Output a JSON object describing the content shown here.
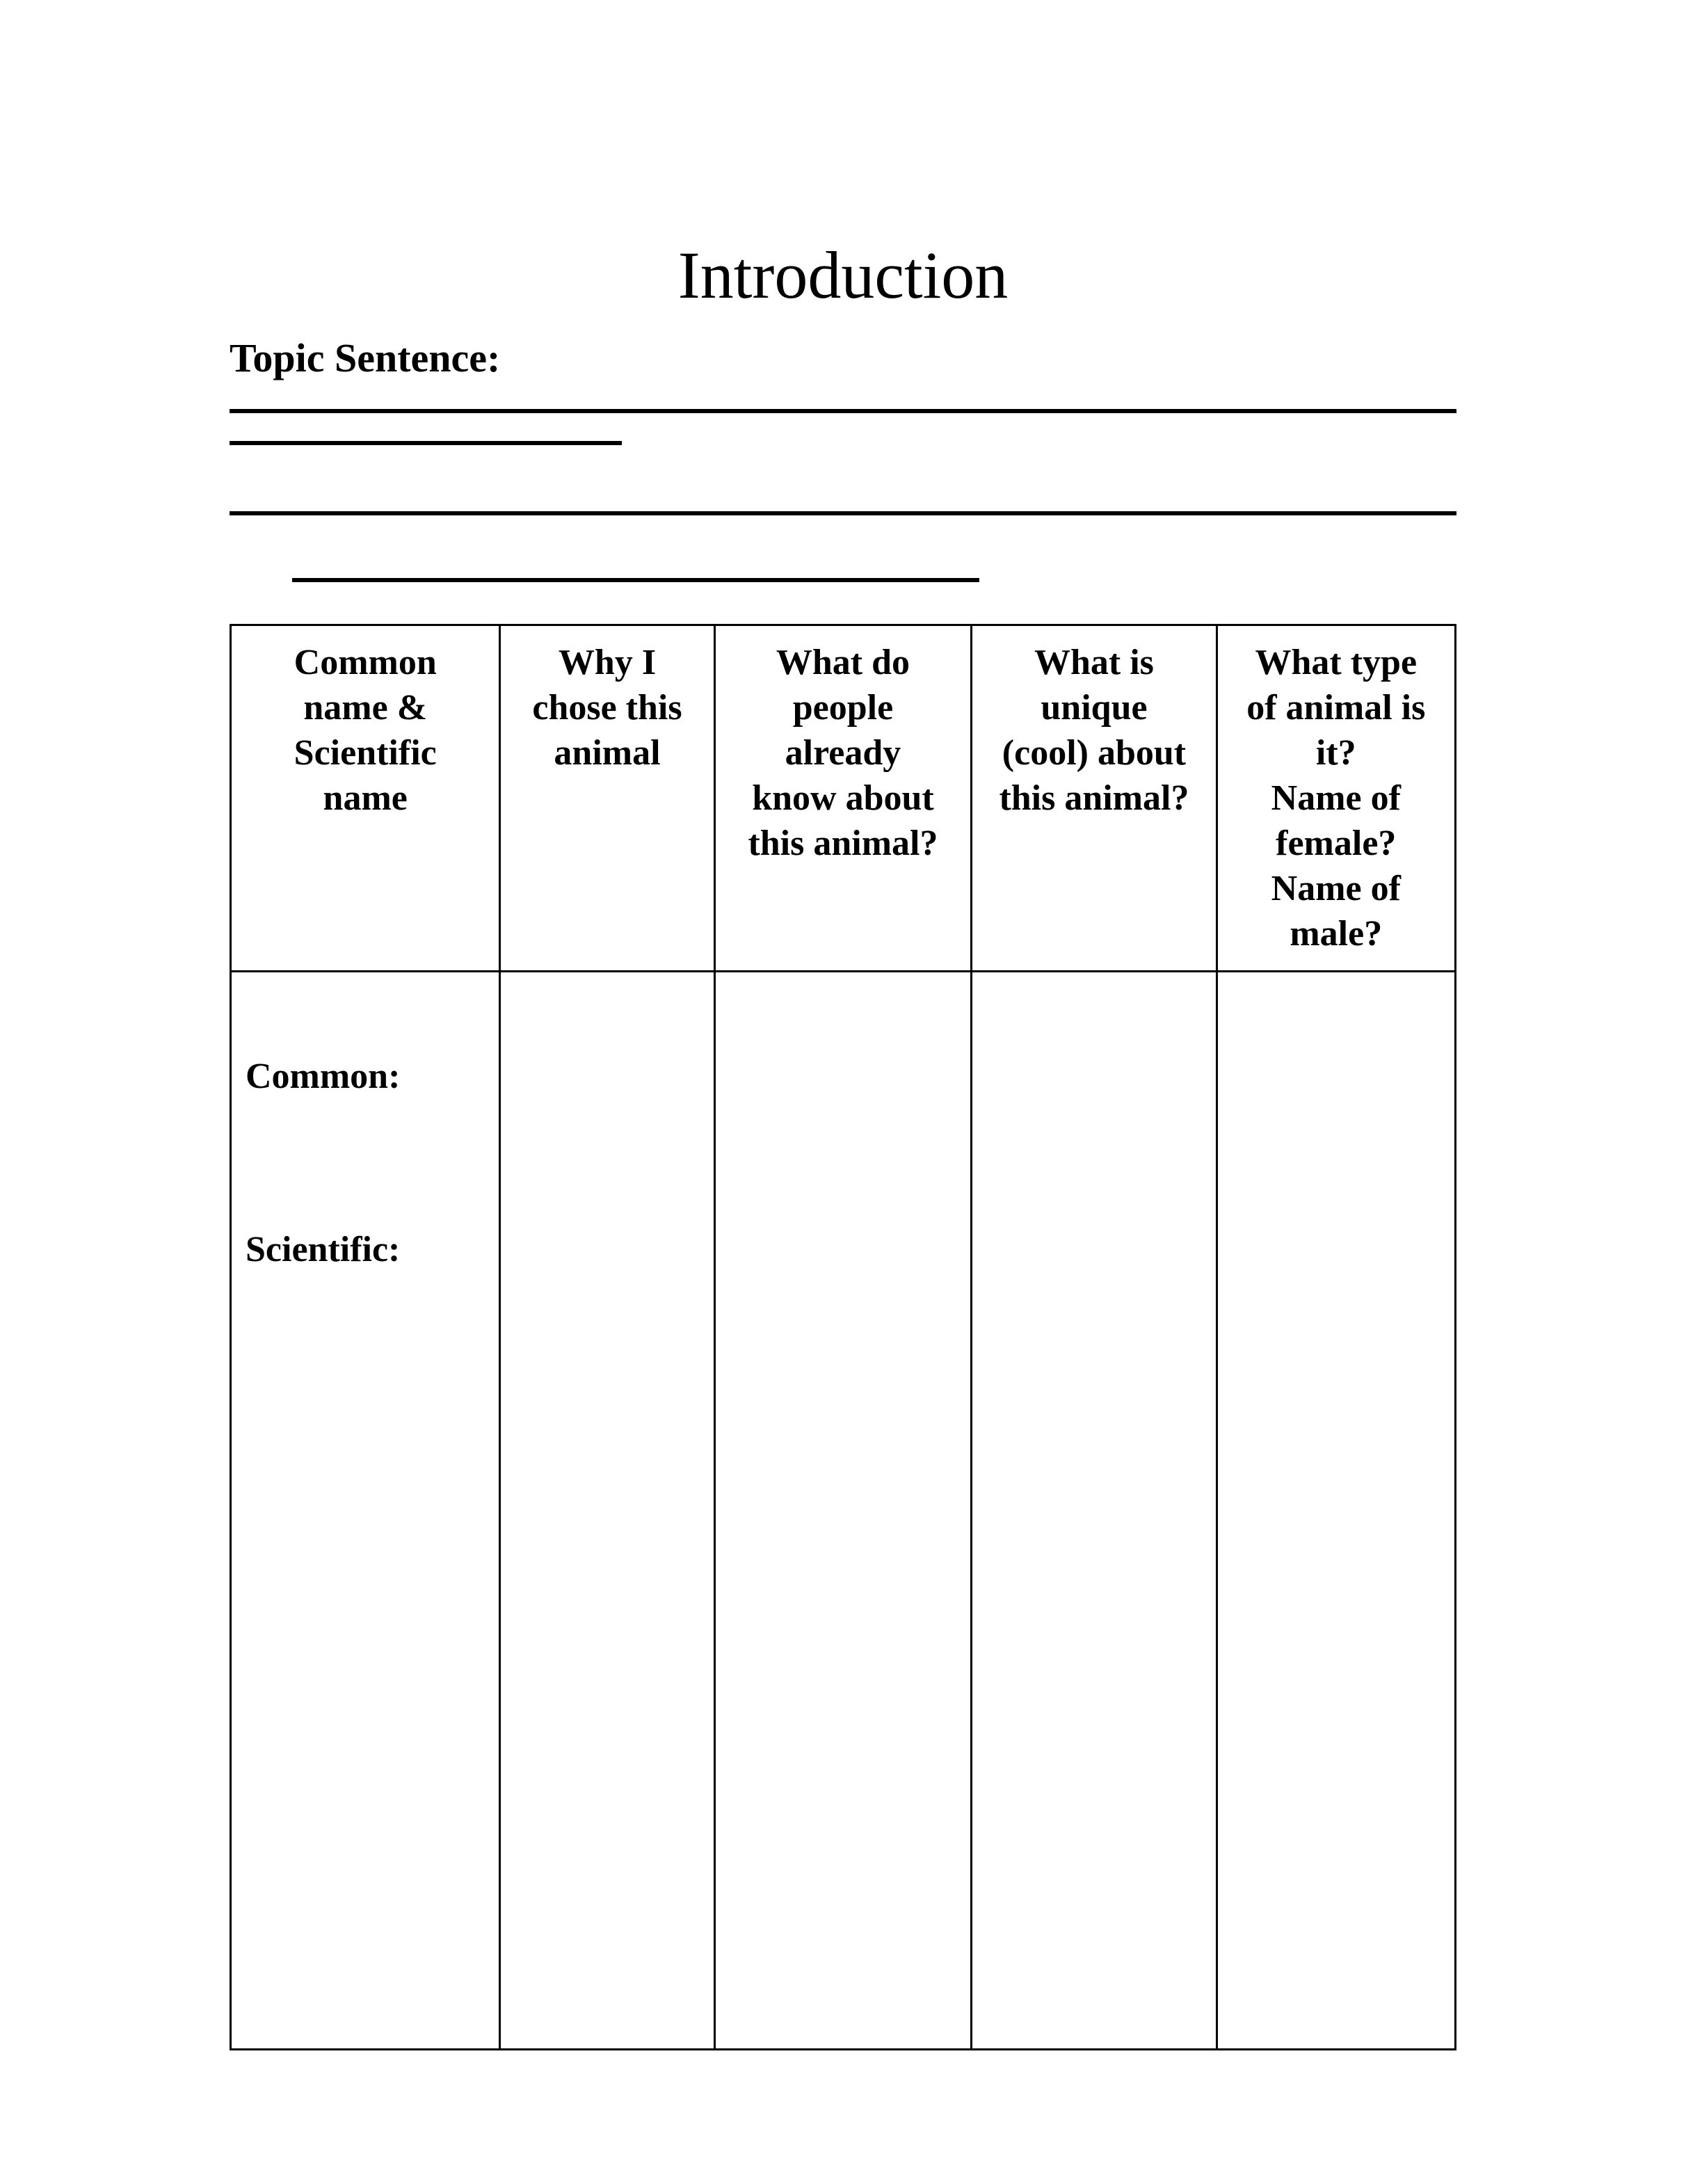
{
  "page": {
    "title": "Introduction",
    "topic_label": "Topic Sentence:"
  },
  "table": {
    "columns": [
      {
        "lines": [
          "Common",
          "name &",
          "Scientific",
          "name"
        ]
      },
      {
        "lines": [
          "Why I",
          "chose this",
          "animal"
        ]
      },
      {
        "lines": [
          "What do",
          "people",
          "already",
          "know about",
          "this animal?"
        ]
      },
      {
        "lines": [
          "What is",
          "unique",
          "(cool) about",
          "this animal?"
        ]
      },
      {
        "lines": [
          "What type",
          "of animal is",
          "it?",
          "Name of",
          "female?",
          "Name of",
          "male?"
        ]
      }
    ],
    "row_labels": {
      "common": "Common:",
      "scientific": "Scientific:"
    }
  },
  "styling": {
    "background_color": "#ffffff",
    "text_color": "#000000",
    "border_color": "#000000",
    "title_fontsize": 96,
    "label_fontsize": 58,
    "header_fontsize": 52,
    "body_fontsize": 52,
    "line_thickness": 6,
    "table_border_width": 3,
    "font_family": "Times New Roman"
  }
}
